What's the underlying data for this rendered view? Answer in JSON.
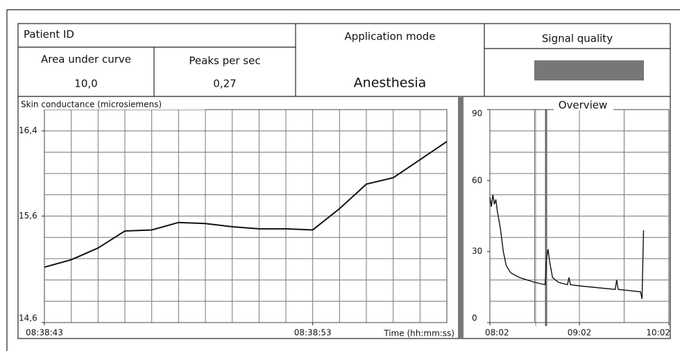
{
  "header": {
    "patient_id_label": "Patient ID",
    "application_mode_label": "Application mode",
    "signal_quality_label": "Signal quality",
    "area_label": "Area under curve",
    "area_value": "10,0",
    "peaks_label": "Peaks per sec",
    "peaks_value": "0,27",
    "application_mode": "Anesthesia"
  },
  "chart_data": [
    {
      "type": "line",
      "ylabel": "Skin conductance (microsiemens)",
      "xlabel": "Time (hh:mm:ss)",
      "color": "#111111",
      "x": [
        "08:38:43",
        "08:38:44",
        "08:38:45",
        "08:38:46",
        "08:38:47",
        "08:38:48",
        "08:38:49",
        "08:38:50",
        "08:38:51",
        "08:38:52",
        "08:38:53",
        "08:38:54",
        "08:38:55",
        "08:38:56",
        "08:38:57",
        "08:38:58"
      ],
      "values": [
        15.12,
        15.19,
        15.3,
        15.46,
        15.47,
        15.54,
        15.53,
        15.5,
        15.48,
        15.48,
        15.47,
        15.67,
        15.9,
        15.96,
        16.13,
        16.3
      ],
      "xlim": [
        "08:38:43",
        "08:38:58"
      ],
      "xticks": [
        "08:38:43",
        "08:38:53"
      ],
      "xgrid": [
        "08:38:43",
        "08:38:44",
        "08:38:45",
        "08:38:46",
        "08:38:47",
        "08:38:48",
        "08:38:49",
        "08:38:50",
        "08:38:51",
        "08:38:52",
        "08:38:53",
        "08:38:54",
        "08:38:55",
        "08:38:56",
        "08:38:57",
        "08:38:58"
      ],
      "ylim": [
        14.6,
        16.6
      ],
      "yticks": [
        {
          "value": 14.6,
          "label": "14,6"
        },
        {
          "value": 15.6,
          "label": "15,6"
        },
        {
          "value": 16.4,
          "label": "16,4"
        }
      ],
      "ygrid": [
        14.6,
        14.8,
        15.0,
        15.2,
        15.4,
        15.6,
        15.8,
        16.0,
        16.2,
        16.4,
        16.6
      ]
    },
    {
      "type": "line",
      "title": "Overview",
      "color": "#111111",
      "x": [
        "08:02",
        "08:03",
        "08:04",
        "08:05",
        "08:06",
        "08:07",
        "08:09",
        "08:11",
        "08:13",
        "08:16",
        "08:22",
        "08:32",
        "08:39",
        "08:40",
        "08:41",
        "08:42",
        "08:44",
        "08:48",
        "08:54",
        "08:55",
        "08:56",
        "09:02",
        "09:26",
        "09:27",
        "09:28",
        "09:43",
        "09:44",
        "09:45"
      ],
      "values": [
        53,
        49,
        54,
        50,
        52,
        47,
        40,
        30,
        24,
        21,
        19,
        17,
        16,
        27,
        31,
        26,
        19,
        17,
        16,
        19,
        16,
        15.5,
        14,
        18,
        14,
        13,
        10,
        39
      ],
      "xlim": [
        "08:02",
        "10:02"
      ],
      "xticks": [
        "08:02",
        "09:02",
        "10:02"
      ],
      "xgrid": [
        "08:02",
        "08:32",
        "09:02",
        "09:32",
        "10:02"
      ],
      "ylim": [
        0,
        90
      ],
      "yticks": [
        0,
        30,
        60,
        90
      ],
      "ygrid": [
        0,
        9,
        18,
        27,
        36,
        45,
        54,
        63,
        72,
        81,
        90
      ]
    }
  ]
}
